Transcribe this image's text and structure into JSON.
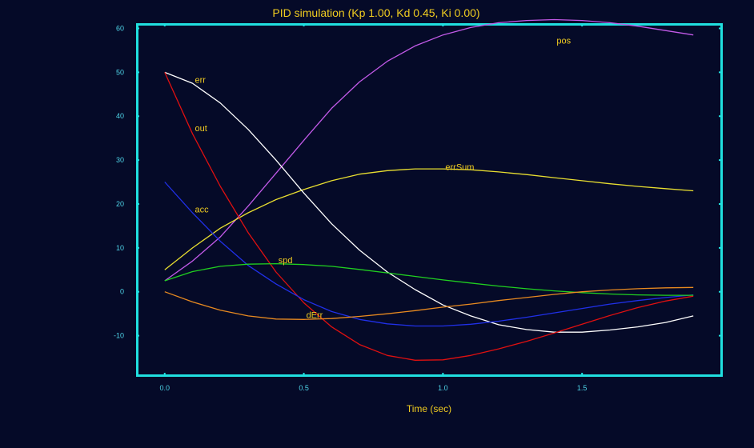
{
  "chart_data": {
    "type": "line",
    "title": "PID simulation (Kp 1.00, Kd 0.45, Ki 0.00)",
    "xlabel": "Time (sec)",
    "ylabel": "",
    "xlim": [
      -0.1,
      2.0
    ],
    "ylim": [
      -19,
      61
    ],
    "x_ticks": [
      0.0,
      0.5,
      1.0,
      1.5
    ],
    "x_tick_labels": [
      "0.0",
      "0.5",
      "1.0",
      "1.5"
    ],
    "y_ticks": [
      60,
      50,
      40,
      30,
      20,
      10,
      0,
      -10
    ],
    "y_tick_labels": [
      "60",
      "50",
      "40",
      "30",
      "20",
      "10",
      "0",
      "-10"
    ],
    "grid": false,
    "x": [
      0.0,
      0.1,
      0.2,
      0.3,
      0.4,
      0.5,
      0.6,
      0.7,
      0.8,
      0.9,
      1.0,
      1.1,
      1.2,
      1.3,
      1.4,
      1.5,
      1.6,
      1.7,
      1.8,
      1.9
    ],
    "series": [
      {
        "name": "pos",
        "color": "#c25ae8",
        "label_x": 1.4,
        "label_y": 57.3,
        "values": [
          2.5,
          7,
          12.5,
          19.5,
          27,
          34.5,
          41.8,
          47.8,
          52.5,
          56,
          58.5,
          60.2,
          61.3,
          61.8,
          62,
          61.8,
          61.3,
          60.5,
          59.5,
          58.5
        ]
      },
      {
        "name": "errSum",
        "color": "#e8de30",
        "label_x": 1.0,
        "label_y": 28.5,
        "values": [
          5,
          10,
          14.5,
          18,
          21,
          23.3,
          25.3,
          26.8,
          27.6,
          28,
          28,
          27.8,
          27.3,
          26.7,
          26,
          25.3,
          24.6,
          24,
          23.5,
          23
        ]
      },
      {
        "name": "err",
        "color": "#ffffff",
        "label_x": 0.1,
        "label_y": 48.3,
        "values": [
          50,
          47.5,
          43,
          37,
          30,
          22.5,
          15.5,
          9.5,
          4.5,
          0.5,
          -3,
          -5.5,
          -7.5,
          -8.6,
          -9.2,
          -9.2,
          -8.7,
          -8,
          -7,
          -5.5
        ]
      },
      {
        "name": "out",
        "color": "#e01010",
        "label_x": 0.1,
        "label_y": 37.3,
        "values": [
          50,
          36,
          24,
          13.5,
          4.5,
          -2.5,
          -8,
          -12,
          -14.5,
          -15.6,
          -15.5,
          -14.5,
          -13,
          -11.3,
          -9.4,
          -7.4,
          -5.4,
          -3.6,
          -2.1,
          -1
        ]
      },
      {
        "name": "acc",
        "color": "#2030e8",
        "label_x": 0.1,
        "label_y": 18.8,
        "values": [
          25,
          18,
          11.5,
          6,
          1.8,
          -1.8,
          -4.5,
          -6.3,
          -7.3,
          -7.8,
          -7.8,
          -7.4,
          -6.7,
          -5.8,
          -4.8,
          -3.8,
          -2.8,
          -2,
          -1.3,
          -0.7
        ]
      },
      {
        "name": "spd",
        "color": "#20d020",
        "label_x": 0.4,
        "label_y": 7.2,
        "values": [
          2.5,
          4.6,
          5.8,
          6.3,
          6.4,
          6.2,
          5.8,
          5.1,
          4.3,
          3.5,
          2.7,
          2,
          1.3,
          0.7,
          0.2,
          -0.2,
          -0.5,
          -0.7,
          -0.8,
          -0.8
        ]
      },
      {
        "name": "dErr",
        "color": "#e88a20",
        "label_x": 0.5,
        "label_y": -5.2,
        "values": [
          0,
          -2.3,
          -4.2,
          -5.5,
          -6.2,
          -6.3,
          -6.1,
          -5.6,
          -5,
          -4.3,
          -3.5,
          -2.8,
          -2,
          -1.3,
          -0.6,
          0,
          0.4,
          0.7,
          0.9,
          1
        ]
      }
    ],
    "colors": {
      "background": "#050a28",
      "frame": "#20e0e0",
      "tick_text": "#4fd5e8",
      "title_text": "#f0cc20",
      "series_label_text": "#f0cc20"
    }
  }
}
